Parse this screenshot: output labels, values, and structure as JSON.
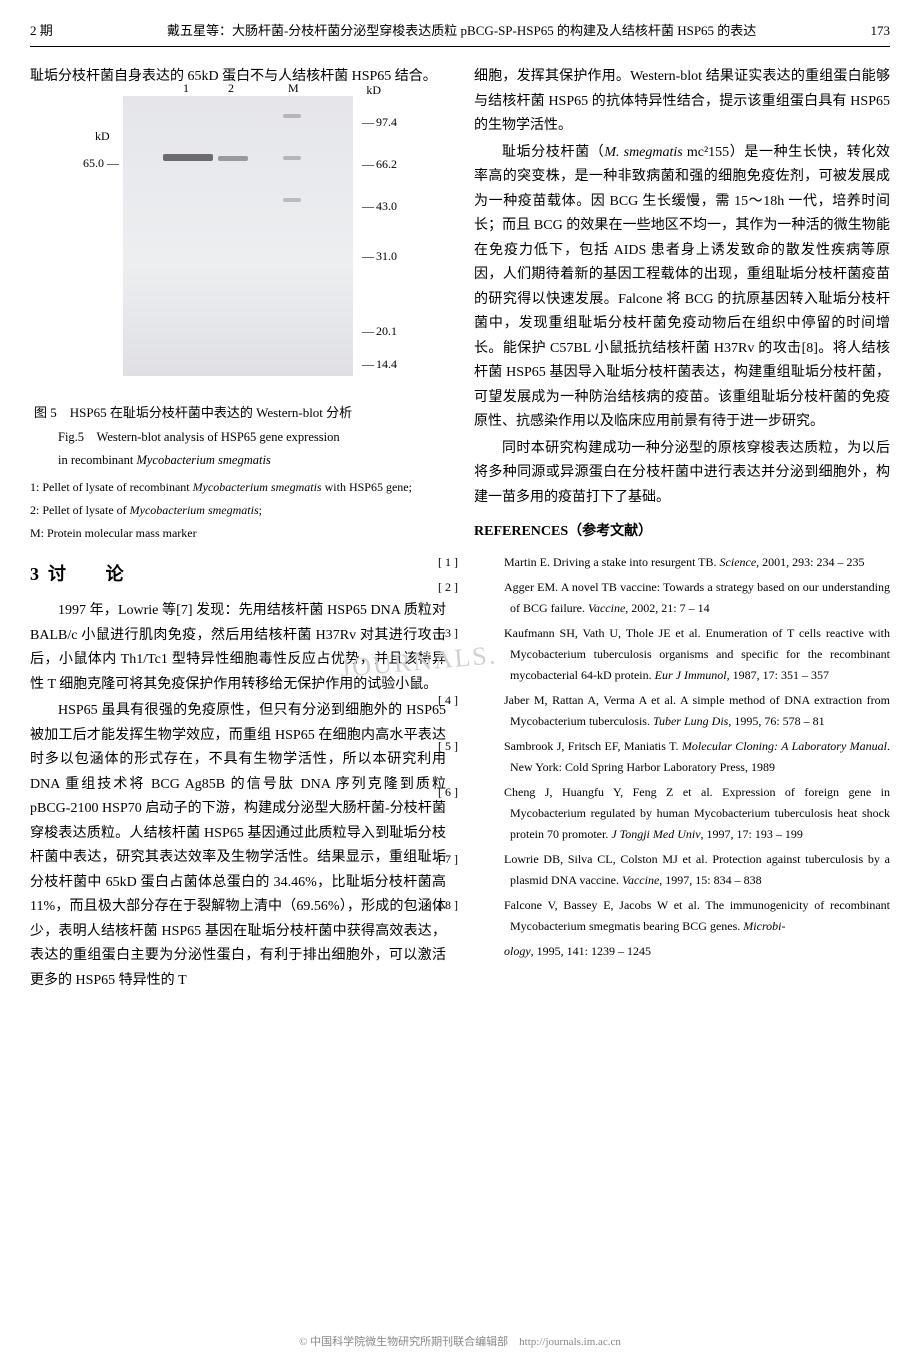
{
  "header": {
    "issue": "2 期",
    "title": "戴五星等：大肠杆菌-分枝杆菌分泌型穿梭表达质粒 pBCG-SP-HSP65 的构建及人结核杆菌 HSP65 的表达",
    "page": "173"
  },
  "leftCol": {
    "introPara": "耻垢分枝杆菌自身表达的 65kD 蛋白不与人结核杆菌 HSP65 结合。",
    "gel": {
      "lane1": "1",
      "lane2": "2",
      "laneM": "M",
      "kdRight": "kD",
      "kdLeft": "kD",
      "sideTick": "65.0 —",
      "mw": [
        "97.4",
        "66.2",
        "43.0",
        "31.0",
        "20.1",
        "14.4"
      ]
    },
    "figCaptionCn": "图 5　HSP65 在耻垢分枝杆菌中表达的 Western-blot 分析",
    "figCaptionEn1": "Fig.5　Western-blot analysis of HSP65 gene expression",
    "figCaptionEn2": "in recombinant ",
    "figCaptionEn2It": "Mycobacterium smegmatis",
    "figNote1a": "1: Pellet of lysate of recombinant ",
    "figNote1It": "Mycobacterium smegmatis",
    "figNote1b": " with HSP65 gene;",
    "figNote2a": "2: Pellet of lysate of ",
    "figNote2It": "Mycobacterium smegmatis",
    "figNote2b": ";",
    "figNote3": "M: Protein molecular mass marker",
    "sectionNum": "3",
    "sectionTitle": "讨　论",
    "para1": "1997 年，Lowrie 等[7] 发现：先用结核杆菌 HSP65 DNA 质粒对 BALB/c 小鼠进行肌肉免疫，然后用结核杆菌 H37Rv 对其进行攻击后，小鼠体内 Th1/Tc1 型特异性细胞毒性反应占优势，并且该特异性 T 细胞克隆可将其免疫保护作用转移给无保护作用的试验小鼠。",
    "para2": "HSP65 虽具有很强的免疫原性，但只有分泌到细胞外的 HSP65 被加工后才能发挥生物学效应，而重组 HSP65 在细胞内高水平表达时多以包涵体的形式存在，不具有生物学活性，所以本研究利用 DNA 重组技术将 BCG Ag85B 的信号肽 DNA 序列克隆到质粒 pBCG-2100 HSP70 启动子的下游，构建成分泌型大肠杆菌-分枝杆菌穿梭表达质粒。人结核杆菌 HSP65 基因通过此质粒导入到耻垢分枝杆菌中表达，研究其表达效率及生物学活性。结果显示，重组耻垢分枝杆菌中 65kD 蛋白占菌体总蛋白的 34.46%，比耻垢分枝杆菌高 11%，而且极大部分存在于裂解物上清中（69.56%），形成的包涵体少，表明人结核杆菌 HSP65 基因在耻垢分枝杆菌中获得高效表达，表达的重组蛋白主要为分泌性蛋白，有利于排出细胞外，可以激活更多的 HSP65 特异性的 T"
  },
  "rightCol": {
    "para1": "细胞，发挥其保护作用。Western-blot 结果证实表达的重组蛋白能够与结核杆菌 HSP65 的抗体特异性结合，提示该重组蛋白具有 HSP65 的生物学活性。",
    "para2a": "耻垢分枝杆菌（",
    "para2It": "M. smegmatis",
    "para2b": " mc²155）是一种生长快，转化效率高的突变株，是一种非致病菌和强的细胞免疫佐剂，可被发展成为一种疫苗载体。因 BCG 生长缓慢，需 15～18h 一代，培养时间长；而且 BCG 的效果在一些地区不均一，其作为一种活的微生物能在免疫力低下，包括 AIDS 患者身上诱发致命的散发性疾病等原因，人们期待着新的基因工程载体的出现，重组耻垢分枝杆菌疫苗的研究得以快速发展。Falcone 将 BCG 的抗原基因转入耻垢分枝杆菌中，发现重组耻垢分枝杆菌免疫动物后在组织中停留的时间增长。能保护 C57BL 小鼠抵抗结核杆菌 H37Rv 的攻击[8]。将人结核杆菌 HSP65 基因导入耻垢分枝杆菌表达，构建重组耻垢分枝杆菌，可望发展成为一种防治结核病的疫苗。该重组耻垢分枝杆菌的免疫原性、抗感染作用以及临床应用前景有待于进一步研究。",
    "para3": "同时本研究构建成功一种分泌型的原核穿梭表达质粒，为以后将多种同源或异源蛋白在分枝杆菌中进行表达并分泌到细胞外，构建一苗多用的疫苗打下了基础。",
    "refHeading": "REFERENCES（参考文献）",
    "refs": [
      {
        "num": "[ 1 ]",
        "text": "Martin E. Driving a stake into resurgent TB. ",
        "it": "Science",
        "tail": ", 2001, 293: 234 – 235"
      },
      {
        "num": "[ 2 ]",
        "text": "Agger EM. A novel TB vaccine: Towards a strategy based on our understanding of BCG failure. ",
        "it": "Vaccine",
        "tail": ", 2002, 21: 7 – 14"
      },
      {
        "num": "[ 3 ]",
        "text": "Kaufmann SH, Vath U, Thole JE et al. Enumeration of T cells reactive with Mycobacterium tuberculosis organisms and specific for the recombinant mycobacterial 64-kD protein. ",
        "it": "Eur J Immunol",
        "tail": ", 1987, 17: 351 – 357"
      },
      {
        "num": "[ 4 ]",
        "text": "Jaber M, Rattan A, Verma A et al. A simple method of DNA extraction from Mycobacterium tuberculosis. ",
        "it": "Tuber Lung Dis",
        "tail": ", 1995, 76: 578 – 81"
      },
      {
        "num": "[ 5 ]",
        "text": "Sambrook J, Fritsch EF, Maniatis T. ",
        "it": "Molecular Cloning: A Laboratory Manual",
        "tail": ". New York: Cold Spring Harbor Laboratory Press, 1989"
      },
      {
        "num": "[ 6 ]",
        "text": "Cheng J, Huangfu Y, Feng Z et al. Expression of foreign gene in Mycobacterium regulated by human Mycobacterium tuberculosis heat shock protein 70 promoter. ",
        "it": "J Tongji Med Univ",
        "tail": ", 1997, 17: 193 – 199"
      },
      {
        "num": "[ 7 ]",
        "text": "Lowrie DB, Silva CL, Colston MJ et al. Protection against tuberculosis by a plasmid DNA vaccine. ",
        "it": "Vaccine",
        "tail": ", 1997, 15: 834 – 838"
      },
      {
        "num": "[ 8 ]",
        "text": "Falcone V, Bassey E, Jacobs W et al. The immunogenicity of recombinant Mycobacterium smegmatis bearing BCG genes. ",
        "it": "Microbi-",
        "tail": ""
      },
      {
        "num": "",
        "text": "",
        "it": "ology",
        "tail": ", 1995, 141: 1239 – 1245"
      }
    ]
  },
  "footer": "© 中国科学院微生物研究所期刊联合编辑部　http://journals.im.ac.cn"
}
